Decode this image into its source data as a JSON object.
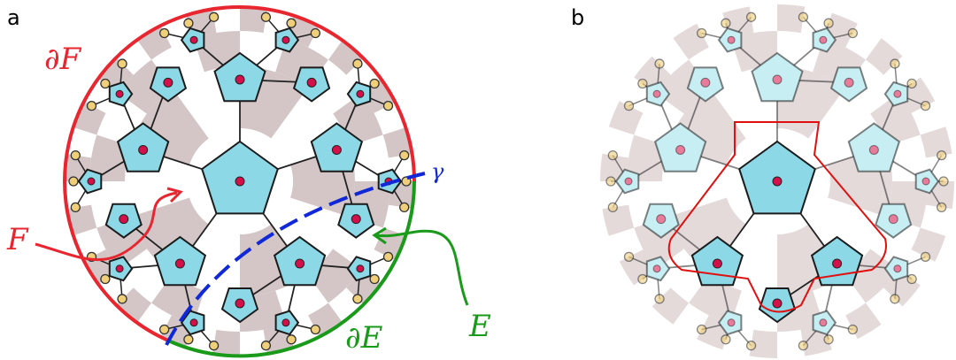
{
  "panel_a": {
    "label": "a",
    "boundary_F": "∂F",
    "region_F": "F",
    "geodesic": "γ",
    "region_E": "E",
    "boundary_E": "∂E"
  },
  "panel_b": {
    "label": "b"
  }
}
